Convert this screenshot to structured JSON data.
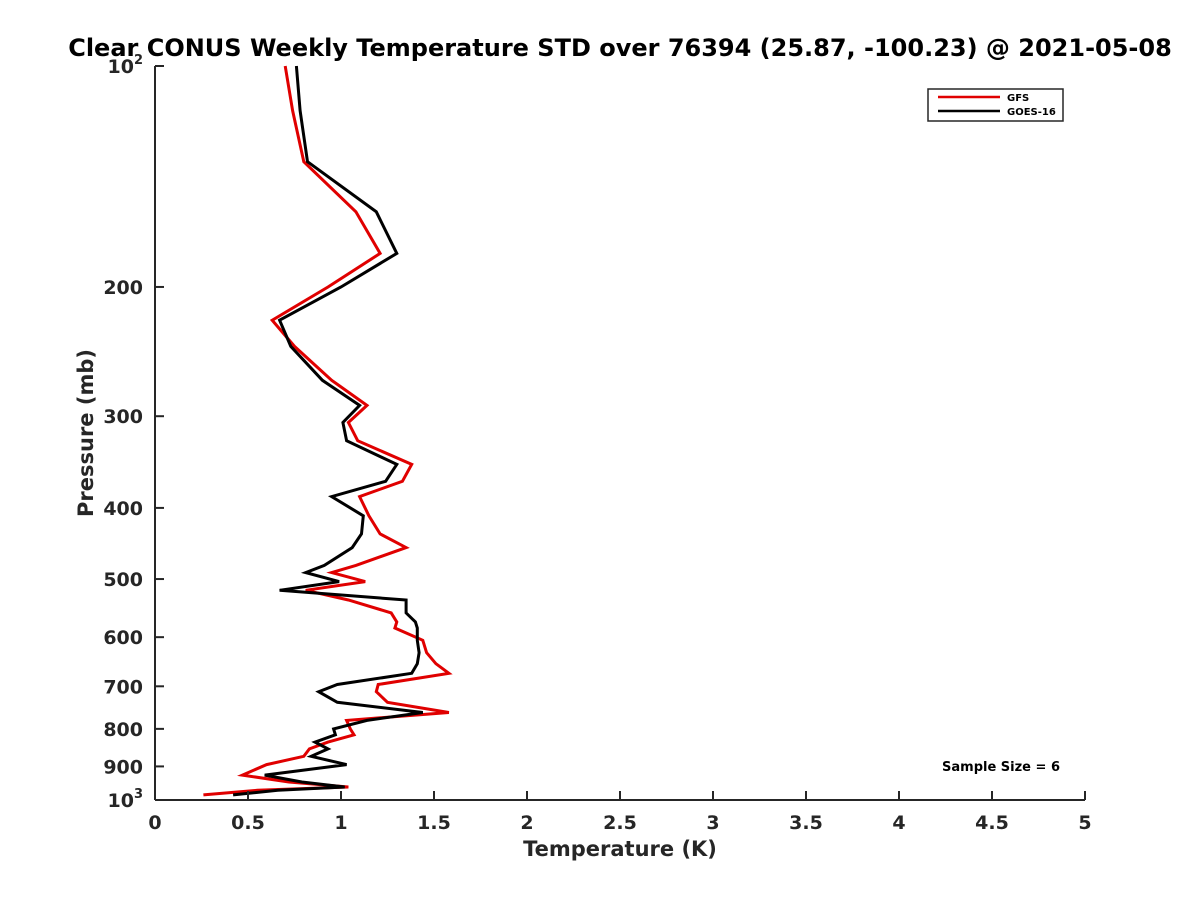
{
  "chart_data": {
    "type": "line",
    "title": "Clear CONUS Weekly Temperature STD over 76394 (25.87, -100.23) @ 2021-05-08",
    "xlabel": "Temperature (K)",
    "ylabel": "Pressure (mb)",
    "xlim": [
      0,
      5
    ],
    "ylim": [
      100,
      1000
    ],
    "y_scale": "log",
    "y_reversed": true,
    "x_ticks": [
      {
        "value": 0,
        "label": "0"
      },
      {
        "value": 0.5,
        "label": "0.5"
      },
      {
        "value": 1,
        "label": "1"
      },
      {
        "value": 1.5,
        "label": "1.5"
      },
      {
        "value": 2,
        "label": "2"
      },
      {
        "value": 2.5,
        "label": "2.5"
      },
      {
        "value": 3,
        "label": "3"
      },
      {
        "value": 3.5,
        "label": "3.5"
      },
      {
        "value": 4,
        "label": "4"
      },
      {
        "value": 4.5,
        "label": "4.5"
      },
      {
        "value": 5,
        "label": "5"
      }
    ],
    "y_ticks": [
      {
        "value": 100,
        "label": "10",
        "sup": "2"
      },
      {
        "value": 200,
        "label": "200"
      },
      {
        "value": 300,
        "label": "300"
      },
      {
        "value": 400,
        "label": "400"
      },
      {
        "value": 500,
        "label": "500"
      },
      {
        "value": 600,
        "label": "600"
      },
      {
        "value": 700,
        "label": "700"
      },
      {
        "value": 800,
        "label": "800"
      },
      {
        "value": 900,
        "label": "900"
      },
      {
        "value": 1000,
        "label": "10",
        "sup": "3"
      }
    ],
    "grid": false,
    "legend_position": "top-right",
    "annotation": "Sample Size = 6",
    "series": [
      {
        "name": "GFS",
        "color": "#e00000",
        "points": [
          [
            0.7,
            100
          ],
          [
            0.74,
            115
          ],
          [
            0.8,
            135
          ],
          [
            1.08,
            158
          ],
          [
            1.21,
            180
          ],
          [
            0.93,
            200
          ],
          [
            0.63,
            222
          ],
          [
            0.75,
            241
          ],
          [
            0.95,
            268
          ],
          [
            1.14,
            290
          ],
          [
            1.04,
            306
          ],
          [
            1.09,
            324
          ],
          [
            1.38,
            349
          ],
          [
            1.33,
            368
          ],
          [
            1.1,
            386
          ],
          [
            1.15,
            410
          ],
          [
            1.21,
            434
          ],
          [
            1.35,
            453
          ],
          [
            1.08,
            479
          ],
          [
            0.95,
            490
          ],
          [
            1.13,
            504
          ],
          [
            0.81,
            518
          ],
          [
            1.04,
            534
          ],
          [
            1.27,
            556
          ],
          [
            1.3,
            572
          ],
          [
            1.29,
            583
          ],
          [
            1.44,
            606
          ],
          [
            1.46,
            630
          ],
          [
            1.51,
            652
          ],
          [
            1.58,
            672
          ],
          [
            1.2,
            696
          ],
          [
            1.19,
            712
          ],
          [
            1.25,
            736
          ],
          [
            1.58,
            760
          ],
          [
            1.03,
            779
          ],
          [
            1.05,
            800
          ],
          [
            1.07,
            815
          ],
          [
            0.93,
            834
          ],
          [
            0.83,
            852
          ],
          [
            0.8,
            872
          ],
          [
            0.6,
            895
          ],
          [
            0.47,
            925
          ],
          [
            0.72,
            945
          ],
          [
            1.04,
            960
          ],
          [
            0.55,
            970
          ],
          [
            0.26,
            984
          ]
        ]
      },
      {
        "name": "GOES-16",
        "color": "#000000",
        "points": [
          [
            0.76,
            100
          ],
          [
            0.78,
            115
          ],
          [
            0.82,
            135
          ],
          [
            1.19,
            158
          ],
          [
            1.3,
            180
          ],
          [
            1.0,
            200
          ],
          [
            0.67,
            222
          ],
          [
            0.73,
            241
          ],
          [
            0.9,
            268
          ],
          [
            1.1,
            290
          ],
          [
            1.01,
            306
          ],
          [
            1.03,
            324
          ],
          [
            1.3,
            349
          ],
          [
            1.24,
            368
          ],
          [
            0.95,
            386
          ],
          [
            1.12,
            410
          ],
          [
            1.11,
            434
          ],
          [
            1.06,
            453
          ],
          [
            0.91,
            479
          ],
          [
            0.81,
            490
          ],
          [
            0.99,
            504
          ],
          [
            0.67,
            518
          ],
          [
            1.35,
            534
          ],
          [
            1.35,
            556
          ],
          [
            1.4,
            572
          ],
          [
            1.41,
            583
          ],
          [
            1.41,
            606
          ],
          [
            1.42,
            630
          ],
          [
            1.41,
            652
          ],
          [
            1.38,
            672
          ],
          [
            0.98,
            696
          ],
          [
            0.88,
            712
          ],
          [
            0.98,
            736
          ],
          [
            1.44,
            760
          ],
          [
            1.14,
            779
          ],
          [
            0.96,
            800
          ],
          [
            0.97,
            815
          ],
          [
            0.86,
            834
          ],
          [
            0.93,
            852
          ],
          [
            0.84,
            872
          ],
          [
            1.03,
            895
          ],
          [
            0.59,
            925
          ],
          [
            0.79,
            945
          ],
          [
            1.02,
            960
          ],
          [
            0.66,
            970
          ],
          [
            0.42,
            984
          ]
        ]
      }
    ]
  }
}
